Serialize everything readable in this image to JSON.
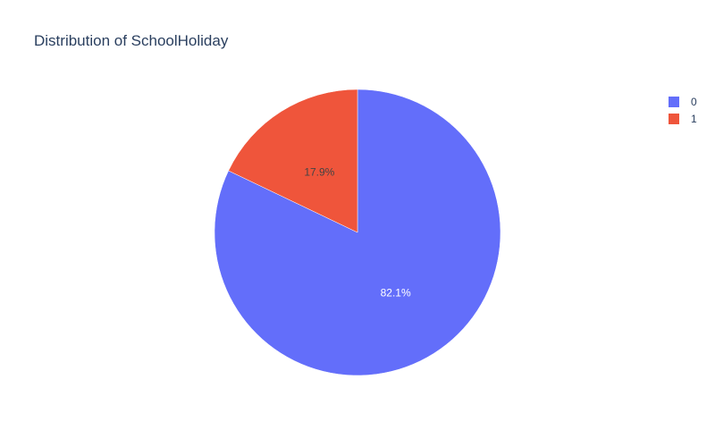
{
  "chart_data": {
    "type": "pie",
    "title": "Distribution of SchoolHoliday",
    "labels": [
      "0",
      "1"
    ],
    "values": [
      82.1,
      17.9
    ],
    "text": [
      "82.1%",
      "17.9%"
    ],
    "colors": [
      "#636efa",
      "#ef553b"
    ],
    "text_colors": [
      "#ffffff",
      "#444444"
    ],
    "legend_position": "top-right"
  }
}
